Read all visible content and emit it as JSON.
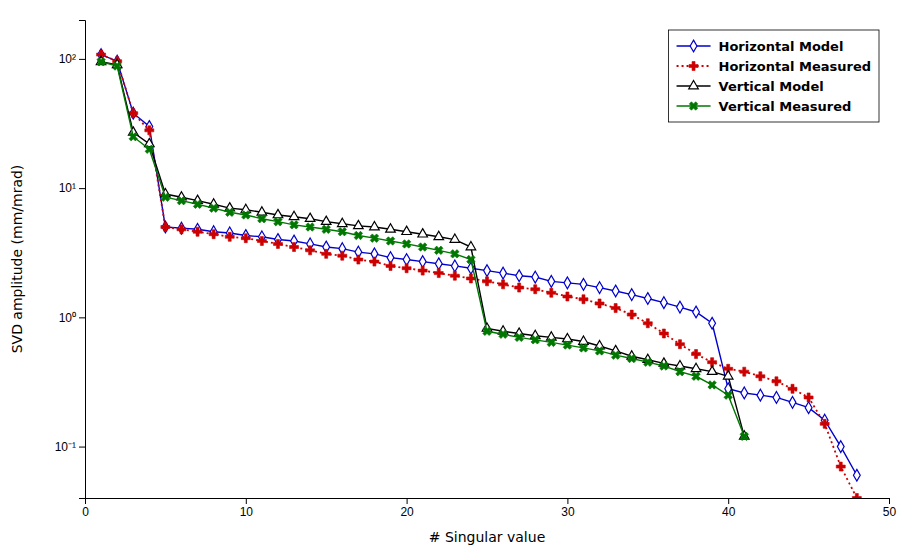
{
  "chart_data": {
    "type": "line",
    "xlabel": "# Singular value",
    "ylabel": "SVD amplitude (mm/mrad)",
    "log": "y",
    "grid": false,
    "legend": "upper right",
    "xlim": [
      0,
      50
    ],
    "xticks": [
      0,
      10,
      20,
      30,
      40,
      50
    ],
    "ylim": [
      0.04,
      200
    ],
    "yticks": [
      {
        "value": 0.1,
        "label": "10⁻¹"
      },
      {
        "value": 1,
        "label": "10⁰"
      },
      {
        "value": 10,
        "label": "10¹"
      },
      {
        "value": 100,
        "label": "10²"
      }
    ],
    "series": [
      {
        "name": "Horizontal Model",
        "color": "#0000cc",
        "marker": "diamond",
        "line_style": "solid",
        "x": [
          1,
          2,
          3,
          4,
          5,
          6,
          7,
          8,
          9,
          10,
          11,
          12,
          13,
          14,
          15,
          16,
          17,
          18,
          19,
          20,
          21,
          22,
          23,
          24,
          25,
          26,
          27,
          28,
          29,
          30,
          31,
          32,
          33,
          34,
          35,
          36,
          37,
          38,
          39,
          40,
          41,
          42,
          43,
          44,
          45,
          46,
          47,
          48
        ],
        "values": [
          108,
          96,
          38,
          30,
          5.0,
          4.9,
          4.8,
          4.6,
          4.5,
          4.3,
          4.2,
          4.0,
          3.9,
          3.7,
          3.5,
          3.4,
          3.2,
          3.1,
          2.9,
          2.8,
          2.7,
          2.6,
          2.5,
          2.4,
          2.3,
          2.2,
          2.1,
          2.05,
          1.9,
          1.85,
          1.8,
          1.7,
          1.6,
          1.5,
          1.4,
          1.3,
          1.2,
          1.1,
          0.9,
          0.28,
          0.26,
          0.25,
          0.24,
          0.22,
          0.2,
          0.16,
          0.1,
          0.06
        ]
      },
      {
        "name": "Horizontal Measured",
        "color": "#cc0000",
        "marker": "plus",
        "line_style": "dotted",
        "x": [
          1,
          2,
          3,
          4,
          5,
          6,
          7,
          8,
          9,
          10,
          11,
          12,
          13,
          14,
          15,
          16,
          17,
          18,
          19,
          20,
          21,
          22,
          23,
          24,
          25,
          26,
          27,
          28,
          29,
          30,
          31,
          32,
          33,
          34,
          35,
          36,
          37,
          38,
          39,
          40,
          41,
          42,
          43,
          44,
          45,
          46,
          47,
          48
        ],
        "values": [
          108,
          96,
          38,
          28,
          5.0,
          4.8,
          4.6,
          4.4,
          4.2,
          4.1,
          3.9,
          3.7,
          3.5,
          3.3,
          3.1,
          3.0,
          2.8,
          2.7,
          2.5,
          2.4,
          2.3,
          2.2,
          2.1,
          2.0,
          1.9,
          1.8,
          1.7,
          1.65,
          1.55,
          1.45,
          1.38,
          1.28,
          1.18,
          1.05,
          0.9,
          0.75,
          0.62,
          0.52,
          0.45,
          0.4,
          0.38,
          0.35,
          0.32,
          0.28,
          0.24,
          0.15,
          0.07,
          0.04
        ]
      },
      {
        "name": "Vertical Model",
        "color": "#000000",
        "marker": "triangle",
        "line_style": "solid",
        "x": [
          1,
          2,
          3,
          4,
          5,
          6,
          7,
          8,
          9,
          10,
          11,
          12,
          13,
          14,
          15,
          16,
          17,
          18,
          19,
          20,
          21,
          22,
          23,
          24,
          25,
          26,
          27,
          28,
          29,
          30,
          31,
          32,
          33,
          34,
          35,
          36,
          37,
          38,
          39,
          40,
          41
        ],
        "values": [
          95,
          90,
          27,
          22,
          9.0,
          8.5,
          8.0,
          7.5,
          7.0,
          6.8,
          6.5,
          6.2,
          6.0,
          5.8,
          5.5,
          5.3,
          5.1,
          5.0,
          4.8,
          4.6,
          4.4,
          4.2,
          4.0,
          3.5,
          0.82,
          0.78,
          0.75,
          0.72,
          0.7,
          0.68,
          0.65,
          0.6,
          0.55,
          0.5,
          0.47,
          0.44,
          0.42,
          0.4,
          0.38,
          0.35,
          0.12
        ]
      },
      {
        "name": "Vertical Measured",
        "color": "#007700",
        "marker": "x",
        "line_style": "solid",
        "x": [
          1,
          2,
          3,
          4,
          5,
          6,
          7,
          8,
          9,
          10,
          11,
          12,
          13,
          14,
          15,
          16,
          17,
          18,
          19,
          20,
          21,
          22,
          23,
          24,
          25,
          26,
          27,
          28,
          29,
          30,
          31,
          32,
          33,
          34,
          35,
          36,
          37,
          38,
          39,
          40,
          41
        ],
        "values": [
          95,
          88,
          25,
          20,
          8.5,
          8.0,
          7.5,
          7.0,
          6.5,
          6.2,
          5.8,
          5.5,
          5.2,
          5.0,
          4.8,
          4.6,
          4.3,
          4.1,
          3.9,
          3.7,
          3.5,
          3.3,
          3.1,
          2.8,
          0.78,
          0.74,
          0.7,
          0.67,
          0.64,
          0.61,
          0.58,
          0.55,
          0.51,
          0.48,
          0.45,
          0.42,
          0.38,
          0.35,
          0.3,
          0.25,
          0.12
        ]
      }
    ]
  }
}
